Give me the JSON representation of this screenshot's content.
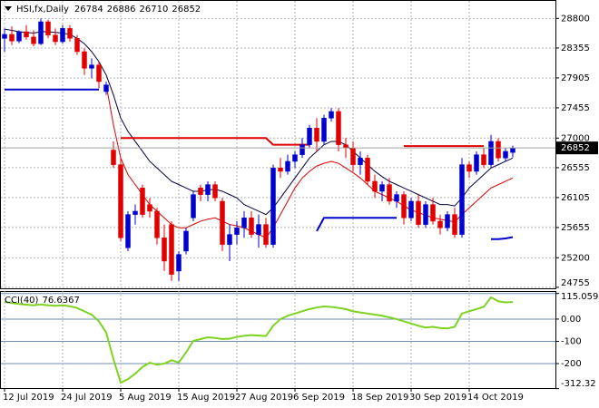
{
  "chart_data": [
    {
      "type": "candlestick",
      "title": "HSI,fx,Daily",
      "categories": [
        "12 Jul 2019",
        null,
        null,
        null,
        null,
        null,
        null,
        null,
        "24 Jul 2019",
        null,
        null,
        null,
        null,
        null,
        null,
        null,
        "5 Aug 2019",
        null,
        null,
        null,
        null,
        null,
        null,
        null,
        "15 Aug 2019",
        null,
        null,
        null,
        null,
        null,
        null,
        null,
        "27 Aug 2019",
        null,
        null,
        null,
        null,
        null,
        null,
        null,
        "6 Sep 2019",
        null,
        null,
        null,
        null,
        null,
        null,
        null,
        "18 Sep 2019",
        null,
        null,
        null,
        null,
        null,
        null,
        null,
        "30 Sep 2019",
        null,
        null,
        null,
        null,
        null,
        null,
        null,
        "14 Oct 2019",
        null,
        null,
        null,
        null,
        null,
        null
      ],
      "open": [
        28500,
        28560,
        28460,
        28600,
        28520,
        28420,
        28750,
        28550,
        28450,
        28650,
        28500,
        28300,
        28050,
        28100,
        27700,
        26820,
        26600,
        25350,
        25850,
        26250,
        26000,
        25900,
        25500,
        25700,
        25000,
        25300,
        25800,
        26250,
        26150,
        26300,
        26050,
        25400,
        25550,
        25650,
        25800,
        25550,
        25700,
        25400,
        26550,
        26500,
        26650,
        26750,
        26900,
        27150,
        26950,
        27300,
        27400,
        26900,
        26850,
        26600,
        26700,
        26350,
        26200,
        26300,
        26050,
        26150,
        25800,
        26050,
        25700,
        26000,
        25750,
        25650,
        25850,
        25550,
        26600,
        26500,
        26750,
        26600,
        26950,
        26700,
        26784
      ],
      "high": [
        28650,
        28680,
        28620,
        28700,
        28620,
        28800,
        28780,
        28650,
        28700,
        28700,
        28550,
        28350,
        28200,
        28150,
        27850,
        26950,
        26700,
        25900,
        26000,
        26300,
        26100,
        25950,
        25700,
        25750,
        25300,
        25650,
        26200,
        26300,
        26350,
        26350,
        26100,
        25700,
        25750,
        25900,
        25900,
        25850,
        25800,
        26600,
        26700,
        26750,
        26800,
        27000,
        27200,
        27300,
        27350,
        27450,
        27450,
        27000,
        26950,
        26800,
        26750,
        26450,
        26350,
        26400,
        26200,
        26200,
        26100,
        26150,
        26050,
        26100,
        25850,
        25900,
        25950,
        26700,
        26650,
        26800,
        26850,
        27050,
        27000,
        26850,
        26886
      ],
      "low": [
        28300,
        28400,
        28430,
        28480,
        28380,
        28400,
        28500,
        28400,
        28420,
        28450,
        28250,
        27950,
        27900,
        27750,
        27650,
        26550,
        25450,
        25300,
        25700,
        25800,
        25800,
        25400,
        25000,
        24850,
        24850,
        25250,
        25750,
        26050,
        26050,
        26050,
        25300,
        25150,
        25400,
        25500,
        25500,
        25350,
        25350,
        25350,
        26400,
        26450,
        26550,
        26700,
        26850,
        26800,
        26900,
        27250,
        26800,
        26700,
        26500,
        26450,
        26300,
        26100,
        26050,
        26000,
        25950,
        25700,
        25750,
        25650,
        25650,
        25700,
        25550,
        25600,
        25500,
        25500,
        26400,
        26450,
        26550,
        26550,
        26650,
        26650,
        26710
      ],
      "close": [
        28560,
        28460,
        28600,
        28520,
        28420,
        28750,
        28550,
        28450,
        28650,
        28500,
        28300,
        28050,
        28100,
        27850,
        27800,
        26600,
        25500,
        25850,
        25900,
        25850,
        25900,
        25500,
        25150,
        24950,
        25250,
        25600,
        26150,
        26150,
        26300,
        26100,
        25400,
        25550,
        25650,
        25800,
        25550,
        25700,
        25400,
        26550,
        26500,
        26650,
        26750,
        26900,
        27150,
        26950,
        27300,
        27400,
        26900,
        26850,
        26600,
        26700,
        26350,
        26200,
        26300,
        26050,
        26150,
        25800,
        26050,
        25700,
        26000,
        25750,
        25650,
        25850,
        25550,
        26600,
        26500,
        26750,
        26600,
        26950,
        26700,
        26800,
        26852
      ],
      "up_color": "#0000cd",
      "down_color": "#e00000",
      "series": [
        {
          "color": "#000040",
          "values": [
            28640,
            28620,
            28600,
            28590,
            28580,
            28600,
            28600,
            28590,
            28580,
            28560,
            28500,
            28420,
            28300,
            28150,
            27950,
            27650,
            27300,
            27100,
            26950,
            26800,
            26650,
            26550,
            26450,
            26350,
            26300,
            26250,
            26200,
            26200,
            26220,
            26230,
            26200,
            26150,
            26100,
            26000,
            25950,
            25900,
            25850,
            25950,
            26100,
            26250,
            26400,
            26550,
            26700,
            26800,
            26900,
            26950,
            26950,
            26900,
            26800,
            26700,
            26600,
            26500,
            26420,
            26350,
            26300,
            26250,
            26200,
            26150,
            26100,
            26050,
            26000,
            26000,
            25980,
            26100,
            26250,
            26350,
            26450,
            26550,
            26600,
            26650,
            26700
          ]
        },
        {
          "color": "#e00000",
          "values": [
            null,
            null,
            null,
            null,
            null,
            null,
            null,
            null,
            null,
            null,
            null,
            null,
            null,
            null,
            27800,
            27200,
            26700,
            26450,
            26300,
            26150,
            26000,
            25900,
            25800,
            25700,
            25650,
            25650,
            25700,
            25750,
            25780,
            25800,
            25750,
            25700,
            25680,
            25650,
            25600,
            25550,
            25500,
            25650,
            25850,
            26050,
            26250,
            26400,
            26500,
            26580,
            26620,
            26650,
            26620,
            26550,
            26480,
            26400,
            26300,
            26200,
            26150,
            26100,
            26050,
            25980,
            25920,
            25880,
            25840,
            25800,
            25780,
            25760,
            25740,
            25850,
            25950,
            26050,
            26150,
            26250,
            26300,
            26350,
            26400
          ]
        },
        {
          "color": "#0000cd",
          "values": [
            27730,
            27730,
            27730,
            27730,
            27730,
            27730,
            27730,
            27730,
            27730,
            27730,
            27730,
            27730,
            27730,
            27730,
            null,
            null,
            null,
            null,
            null,
            null,
            null,
            null,
            null,
            null,
            null,
            null,
            null,
            null,
            null,
            null,
            null,
            null,
            null,
            null,
            null,
            null,
            null,
            null,
            null,
            null,
            null,
            null,
            null,
            null,
            null,
            null,
            null,
            null,
            null,
            null,
            null,
            null,
            null,
            null,
            null,
            null,
            null,
            null,
            null,
            null,
            null,
            null,
            null,
            null,
            null,
            null,
            null,
            null,
            null,
            null,
            null
          ]
        },
        {
          "color": "#e00000",
          "values": [
            null,
            null,
            null,
            null,
            null,
            null,
            null,
            null,
            null,
            null,
            null,
            null,
            null,
            null,
            null,
            null,
            27000,
            27000,
            27000,
            27000,
            27000,
            27000,
            27000,
            27000,
            27000,
            27000,
            27000,
            27000,
            27000,
            27000,
            27000,
            27000,
            27000,
            27000,
            27000,
            27000,
            27000,
            26900,
            26900,
            26900,
            26900,
            26900,
            26900,
            null,
            null,
            null,
            null,
            null,
            null,
            null,
            null,
            null,
            null,
            null,
            null,
            null,
            null,
            null,
            null,
            null,
            null,
            null,
            null,
            null,
            null,
            null,
            null,
            null,
            null,
            null,
            null
          ]
        },
        {
          "color": "#0000cd",
          "values": [
            null,
            null,
            null,
            null,
            null,
            null,
            null,
            null,
            null,
            null,
            null,
            null,
            null,
            null,
            null,
            null,
            null,
            null,
            null,
            null,
            null,
            null,
            null,
            null,
            null,
            null,
            null,
            null,
            null,
            null,
            null,
            null,
            null,
            null,
            null,
            null,
            null,
            null,
            null,
            null,
            null,
            null,
            null,
            25600,
            25800,
            25800,
            25800,
            25800,
            25800,
            25800,
            25800,
            25800,
            25800,
            25800,
            25800,
            null,
            null,
            null,
            null,
            null,
            null,
            null,
            null,
            null,
            null,
            null,
            null,
            null,
            null,
            null,
            null
          ]
        },
        {
          "color": "#e00000",
          "values": [
            null,
            null,
            null,
            null,
            null,
            null,
            null,
            null,
            null,
            null,
            null,
            null,
            null,
            null,
            null,
            null,
            null,
            null,
            null,
            null,
            null,
            null,
            null,
            null,
            null,
            null,
            null,
            null,
            null,
            null,
            null,
            null,
            null,
            null,
            null,
            null,
            null,
            null,
            null,
            null,
            null,
            null,
            null,
            null,
            null,
            null,
            null,
            null,
            null,
            null,
            null,
            null,
            null,
            null,
            null,
            26880,
            26880,
            26880,
            26880,
            26880,
            26880,
            26880,
            26880,
            26880,
            26880,
            26880,
            26880,
            null,
            null,
            null,
            null
          ]
        },
        {
          "color": "#0000cd",
          "values": [
            null,
            null,
            null,
            null,
            null,
            null,
            null,
            null,
            null,
            null,
            null,
            null,
            null,
            null,
            null,
            null,
            null,
            null,
            null,
            null,
            null,
            null,
            null,
            null,
            null,
            null,
            null,
            null,
            null,
            null,
            null,
            null,
            null,
            null,
            null,
            null,
            null,
            null,
            null,
            null,
            null,
            null,
            null,
            null,
            null,
            null,
            null,
            null,
            null,
            null,
            null,
            null,
            null,
            null,
            null,
            null,
            null,
            null,
            null,
            null,
            null,
            null,
            null,
            null,
            null,
            null,
            null,
            25480,
            25480,
            25490,
            25510
          ]
        }
      ],
      "ylim": [
        24740,
        29050
      ],
      "yticks": [
        28800,
        28355,
        27905,
        27455,
        27000,
        26555,
        26105,
        25655,
        25200,
        24755
      ],
      "grid": true
    },
    {
      "type": "line",
      "title": "CCI(40)",
      "series": [
        {
          "color": "#7ed321",
          "values": [
            78,
            72,
            68,
            65,
            62,
            66,
            62,
            60,
            62,
            58,
            50,
            35,
            20,
            -10,
            -60,
            -180,
            -286,
            -270,
            -245,
            -215,
            -196,
            -205,
            -200,
            -185,
            -195,
            -150,
            -98,
            -90,
            -82,
            -85,
            -90,
            -88,
            -80,
            -75,
            -72,
            -74,
            -76,
            -30,
            0,
            15,
            25,
            35,
            45,
            52,
            57,
            55,
            50,
            45,
            35,
            30,
            25,
            20,
            15,
            8,
            0,
            -10,
            -20,
            -30,
            -38,
            -35,
            -40,
            -42,
            -35,
            25,
            35,
            45,
            55,
            98,
            80,
            75,
            76.6367
          ]
        }
      ],
      "ylim": [
        -314,
        122
      ],
      "yticks": [
        115.0594,
        {
          "value": 0,
          "label": "0.00"
        },
        -100,
        -200,
        -312.32
      ]
    }
  ]
}
